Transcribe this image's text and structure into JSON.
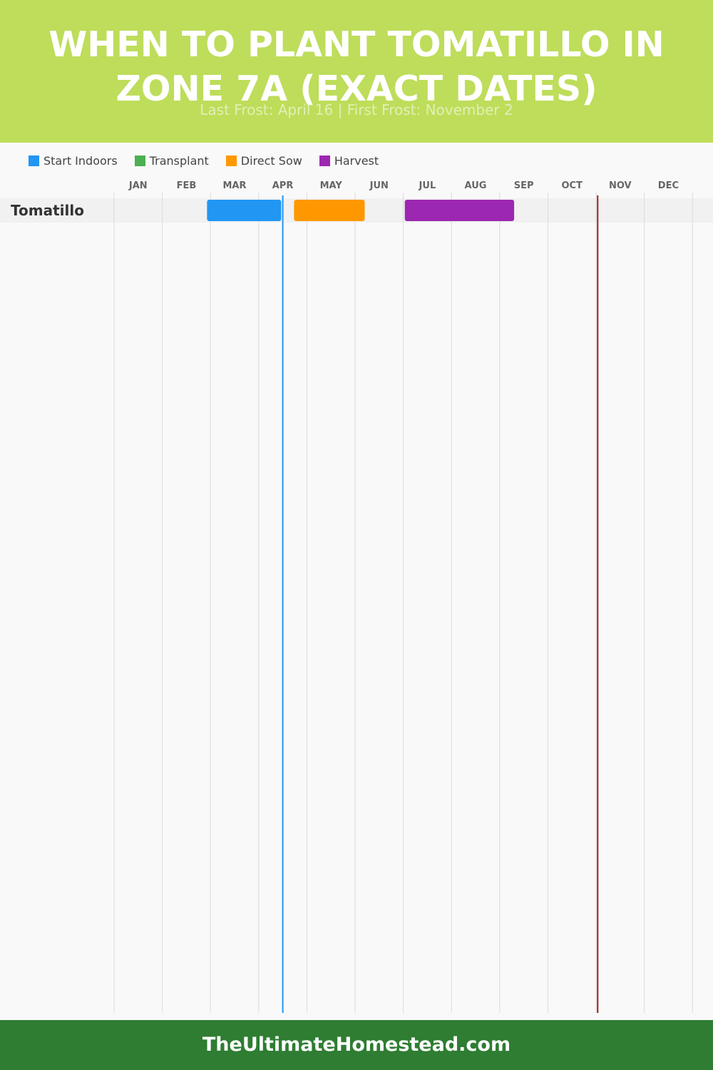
{
  "header": {
    "title": "When to Plant Tomatillo in Zone 7A (Exact Dates)",
    "subtitle": "Last Frost: April 16 | First Frost: November 2"
  },
  "colors": {
    "header_bg": "#bedd5a",
    "footer_bg": "#2e7d32",
    "start_indoors": "#2196f3",
    "transplant": "#4caf50",
    "direct_sow": "#ff9800",
    "harvest": "#9c27b0",
    "last_frost_line": "#2196f3",
    "first_frost_line": "#a11d1d"
  },
  "legend": [
    {
      "label": "Start Indoors",
      "color": "#2196f3"
    },
    {
      "label": "Transplant",
      "color": "#4caf50"
    },
    {
      "label": "Direct Sow",
      "color": "#ff9800"
    },
    {
      "label": "Harvest",
      "color": "#9c27b0"
    }
  ],
  "chart_data": {
    "type": "gantt",
    "months": [
      "JAN",
      "FEB",
      "MAR",
      "APR",
      "MAY",
      "JUN",
      "JUL",
      "AUG",
      "SEP",
      "OCT",
      "NOV",
      "DEC"
    ],
    "rows": [
      {
        "label": "Tomatillo",
        "bars": [
          {
            "phase": "Start Indoors",
            "start": "02-27",
            "end": "04-15"
          },
          {
            "phase": "Direct Sow",
            "start": "04-23",
            "end": "06-07"
          },
          {
            "phase": "Harvest",
            "start": "07-02",
            "end": "09-10"
          }
        ]
      }
    ],
    "markers": [
      {
        "name": "Last Frost",
        "date": "04-16"
      },
      {
        "name": "First Frost",
        "date": "11-02"
      }
    ]
  },
  "footer": {
    "site": "TheUltimateHomestead.com"
  }
}
